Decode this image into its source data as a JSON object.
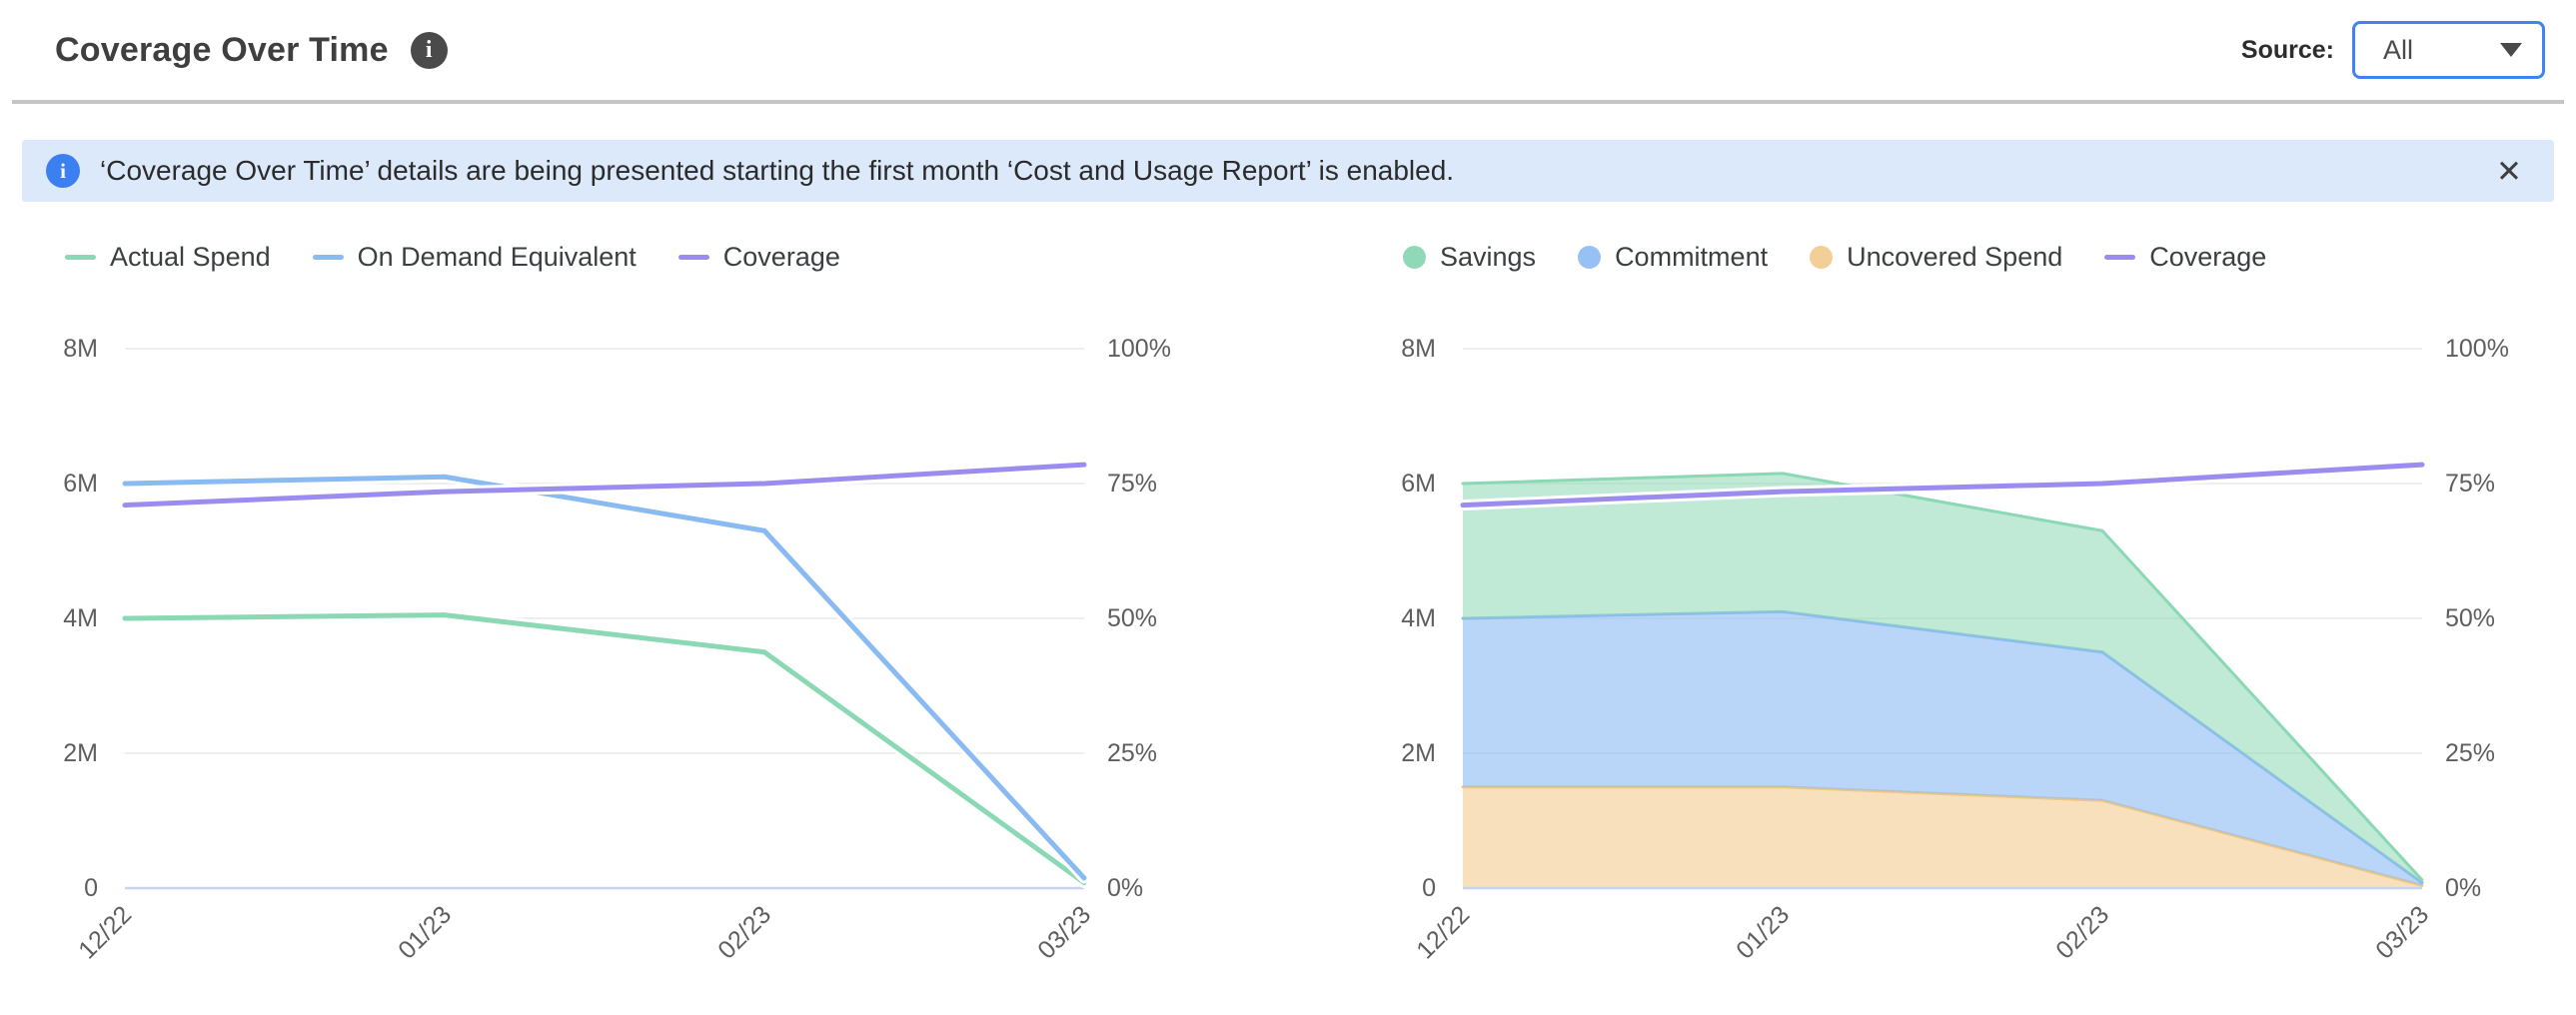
{
  "header": {
    "title": "Coverage Over Time",
    "source_label": "Source:",
    "source_value": "All"
  },
  "icons": {
    "title_info": "i",
    "banner_info": "i",
    "close": "✕"
  },
  "banner": {
    "text": "‘Coverage Over Time’ details are being presented starting the first month ‘Cost and Usage Report’ is enabled."
  },
  "chart_style": {
    "grid_color": "#e9e9e9",
    "axis_color": "#c9d5ec",
    "tick_color": "#5e5e5e"
  },
  "chart_data": [
    {
      "id": "spend-and-coverage",
      "type": "line",
      "title": "",
      "x_labels": [
        "12/22",
        "01/23",
        "02/23",
        "03/23"
      ],
      "left_axis": {
        "unit": "M",
        "ticks": [
          "8M",
          "6M",
          "4M",
          "2M",
          "0"
        ],
        "max": 8,
        "min": 0
      },
      "right_axis": {
        "unit": "%",
        "ticks": [
          "100%",
          "75%",
          "50%",
          "25%",
          "0%"
        ],
        "max": 100,
        "min": 0
      },
      "grid": true,
      "legend_position": "top-left",
      "legend": [
        {
          "label": "Actual Spend",
          "marker": "dash",
          "color": "#8ad8b4"
        },
        {
          "label": "On Demand Equivalent",
          "marker": "dash",
          "color": "#8abaf2"
        },
        {
          "label": "Coverage",
          "marker": "dash",
          "color": "#9b8df0"
        }
      ],
      "series": [
        {
          "name": "Actual Spend",
          "axis": "left",
          "unit": "M",
          "color": "#8ad8b4",
          "halo": true,
          "values": [
            4.0,
            4.05,
            3.5,
            0.08
          ]
        },
        {
          "name": "On Demand Equivalent",
          "axis": "left",
          "unit": "M",
          "color": "#8abaf2",
          "halo": true,
          "values": [
            6.0,
            6.1,
            5.3,
            0.15
          ]
        },
        {
          "name": "Coverage",
          "axis": "right",
          "unit": "%",
          "color": "#9b8df0",
          "halo": true,
          "values": [
            71,
            73.5,
            75,
            78.5
          ]
        }
      ]
    },
    {
      "id": "savings-commitment-uncovered",
      "type": "area",
      "title": "",
      "x_labels": [
        "12/22",
        "01/23",
        "02/23",
        "03/23"
      ],
      "left_axis": {
        "unit": "M",
        "ticks": [
          "8M",
          "6M",
          "4M",
          "2M",
          "0"
        ],
        "max": 8,
        "min": 0
      },
      "right_axis": {
        "unit": "%",
        "ticks": [
          "100%",
          "75%",
          "50%",
          "25%",
          "0%"
        ],
        "max": 100,
        "min": 0
      },
      "grid": true,
      "legend_position": "top-left",
      "legend": [
        {
          "label": "Savings",
          "marker": "dot",
          "color": "#8fd9b8"
        },
        {
          "label": "Commitment",
          "marker": "dot",
          "color": "#96c1f5"
        },
        {
          "label": "Uncovered Spend",
          "marker": "dot",
          "color": "#f2cf97"
        },
        {
          "label": "Coverage",
          "marker": "dash",
          "color": "#9b8df0"
        }
      ],
      "stack": [
        {
          "name": "Uncovered Spend",
          "unit": "M",
          "edge": "#efc684",
          "fill": "rgba(242,205,145,0.62)",
          "values": [
            1.5,
            1.5,
            1.3,
            0.04
          ]
        },
        {
          "name": "Commitment",
          "unit": "M",
          "edge": "#8abaf2",
          "fill": "rgba(148,192,245,0.65)",
          "values": [
            2.5,
            2.6,
            2.2,
            0.04
          ]
        },
        {
          "name": "Savings",
          "unit": "M",
          "edge": "#8ad8b4",
          "fill": "rgba(140,217,181,0.55)",
          "values": [
            2.0,
            2.05,
            1.8,
            0.04
          ]
        }
      ],
      "series": [
        {
          "name": "Coverage",
          "axis": "right",
          "unit": "%",
          "color": "#9b8df0",
          "halo": true,
          "values": [
            71,
            73.5,
            75,
            78.5
          ]
        }
      ]
    }
  ]
}
